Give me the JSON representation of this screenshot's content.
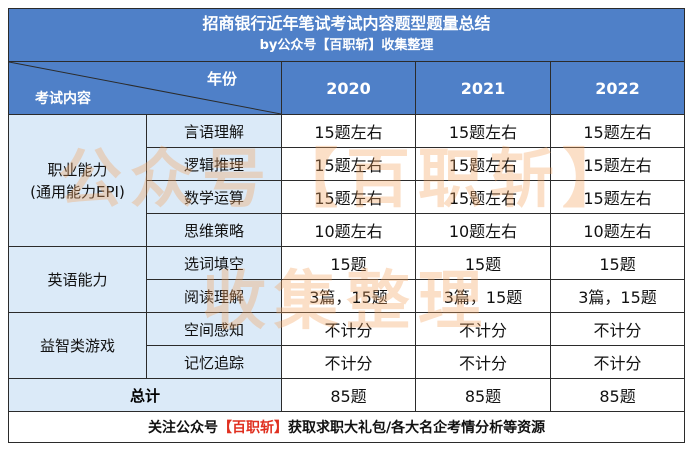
{
  "title": "招商银行近年笔试考试内容题型题量总结",
  "subtitle": "by公众号【百职斩】收集整理",
  "header": {
    "year_label": "年份",
    "exam_label": "考试内容",
    "years": [
      "2020",
      "2021",
      "2022"
    ]
  },
  "categories": [
    {
      "name": "职业能力",
      "name2": "(通用能力EPI)",
      "items": [
        {
          "name": "言语理解",
          "values": [
            "15题左右",
            "15题左右",
            "15题左右"
          ]
        },
        {
          "name": "逻辑推理",
          "values": [
            "15题左右",
            "15题左右",
            "15题左右"
          ]
        },
        {
          "name": "数学运算",
          "values": [
            "15题左右",
            "15题左右",
            "15题左右"
          ]
        },
        {
          "name": "思维策略",
          "values": [
            "10题左右",
            "10题左右",
            "10题左右"
          ]
        }
      ]
    },
    {
      "name": "英语能力",
      "name2": "",
      "items": [
        {
          "name": "选词填空",
          "values": [
            "15题",
            "15题",
            "15题"
          ]
        },
        {
          "name": "阅读理解",
          "values": [
            "3篇，15题",
            "3篇，15题",
            "3篇，15题"
          ]
        }
      ]
    },
    {
      "name": "益智类游戏",
      "name2": "",
      "items": [
        {
          "name": "空间感知",
          "values": [
            "不计分",
            "不计分",
            "不计分"
          ]
        },
        {
          "name": "记忆追踪",
          "values": [
            "不计分",
            "不计分",
            "不计分"
          ]
        }
      ]
    }
  ],
  "total": {
    "label": "总计",
    "values": [
      "85题",
      "85题",
      "85题"
    ]
  },
  "footer": {
    "pre": "关注公众号",
    "highlight": "【百职斩】",
    "post": "获取求职大礼包/各大名企考情分析等资源"
  },
  "watermark": {
    "line1": "公众号【百职斩】",
    "line2": "收集整理"
  }
}
